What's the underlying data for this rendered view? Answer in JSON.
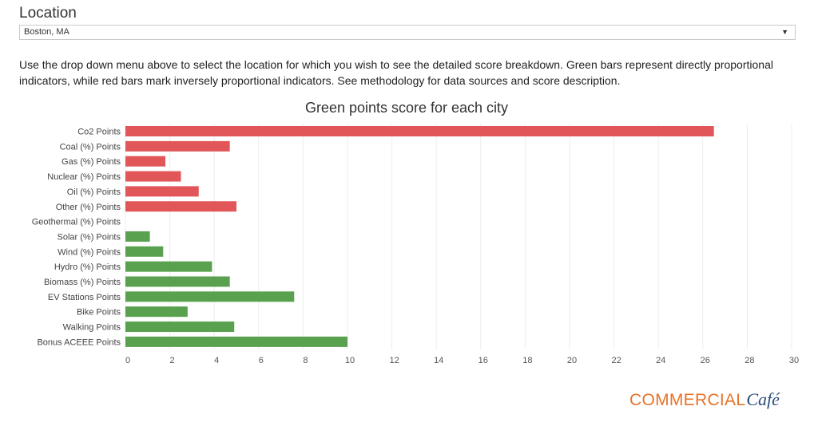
{
  "location": {
    "label": "Location",
    "selected": "Boston, MA"
  },
  "description": "Use the drop down menu above to select the location for which you wish to see the detailed score breakdown. Green bars represent directly proportional indicators, while red bars mark inversely proportional indicators. See methodology for data sources and score description.",
  "colors": {
    "inverse": "#e15759",
    "direct": "#59a14f"
  },
  "chart_data": {
    "type": "bar",
    "orientation": "horizontal",
    "title": "Green points score for each city",
    "xlim": [
      0,
      30
    ],
    "xticks": [
      0,
      2,
      4,
      6,
      8,
      10,
      12,
      14,
      16,
      18,
      20,
      22,
      24,
      26,
      28,
      30
    ],
    "grid": true,
    "bars": [
      {
        "label": "Co2 Points",
        "value": 26.5,
        "kind": "inverse"
      },
      {
        "label": "Coal (%) Points",
        "value": 4.7,
        "kind": "inverse"
      },
      {
        "label": "Gas (%) Points",
        "value": 1.8,
        "kind": "inverse"
      },
      {
        "label": "Nuclear (%) Points",
        "value": 2.5,
        "kind": "inverse"
      },
      {
        "label": "Oil (%) Points",
        "value": 3.3,
        "kind": "inverse"
      },
      {
        "label": "Other (%) Points",
        "value": 5.0,
        "kind": "inverse"
      },
      {
        "label": "Geothermal (%) Points",
        "value": 0,
        "kind": "direct"
      },
      {
        "label": "Solar (%) Points",
        "value": 1.1,
        "kind": "direct"
      },
      {
        "label": "Wind (%) Points",
        "value": 1.7,
        "kind": "direct"
      },
      {
        "label": "Hydro (%) Points",
        "value": 3.9,
        "kind": "direct"
      },
      {
        "label": "Biomass (%) Points",
        "value": 4.7,
        "kind": "direct"
      },
      {
        "label": "EV Stations Points",
        "value": 7.6,
        "kind": "direct"
      },
      {
        "label": "Bike Points",
        "value": 2.8,
        "kind": "direct"
      },
      {
        "label": "Walking Points",
        "value": 4.9,
        "kind": "direct"
      },
      {
        "label": "Bonus ACEEE Points",
        "value": 10.0,
        "kind": "direct"
      }
    ]
  },
  "logo": {
    "word": "COMMERCIAL",
    "script": "Café"
  }
}
